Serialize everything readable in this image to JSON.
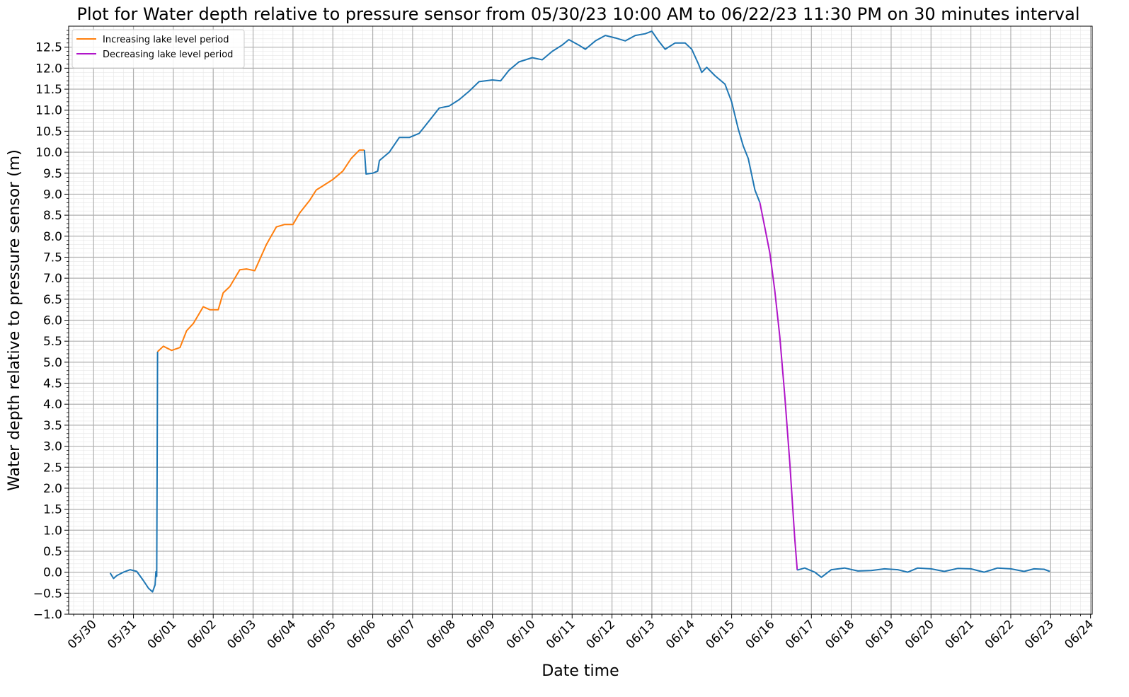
{
  "chart_data": {
    "type": "line",
    "title": "Plot for Water depth relative to pressure sensor from 05/30/23 10:00 AM to 06/22/23 11:30 PM on 30 minutes interval",
    "xlabel": "Date time",
    "ylabel": "Water depth relative to pressure sensor (m)",
    "xlim": [
      "05/29/23 09:00",
      "06/24/23 01:00"
    ],
    "ylim": [
      -1.0,
      13.0
    ],
    "x_ticks": [
      "05/30",
      "05/31",
      "06/01",
      "06/02",
      "06/03",
      "06/04",
      "06/05",
      "06/06",
      "06/07",
      "06/08",
      "06/09",
      "06/10",
      "06/11",
      "06/12",
      "06/13",
      "06/14",
      "06/15",
      "06/16",
      "06/17",
      "06/18",
      "06/19",
      "06/20",
      "06/21",
      "06/22",
      "06/23",
      "06/24"
    ],
    "y_ticks": [
      "−1.0",
      "−0.5",
      "0.0",
      "0.5",
      "1.0",
      "1.5",
      "2.0",
      "2.5",
      "3.0",
      "3.5",
      "4.0",
      "4.5",
      "5.0",
      "5.5",
      "6.0",
      "6.5",
      "7.0",
      "7.5",
      "8.0",
      "8.5",
      "9.0",
      "9.5",
      "10.0",
      "10.5",
      "11.0",
      "11.5",
      "12.0",
      "12.5"
    ],
    "grid": true,
    "minor_grid": true,
    "legend_position": "upper-left",
    "series": [
      {
        "name": "",
        "color": "#1f77b4",
        "points": [
          [
            "05/30/23 10:00",
            -0.02
          ],
          [
            "05/30/23 12:00",
            -0.15
          ],
          [
            "05/30/23 14:00",
            -0.08
          ],
          [
            "05/30/23 18:00",
            0.0
          ],
          [
            "05/30/23 22:00",
            0.06
          ],
          [
            "05/31/23 02:00",
            0.02
          ],
          [
            "05/31/23 06:00",
            -0.2
          ],
          [
            "05/31/23 09:00",
            -0.38
          ],
          [
            "05/31/23 11:30",
            -0.47
          ],
          [
            "05/31/23 13:00",
            -0.3
          ],
          [
            "05/31/23 13:30",
            0.01
          ],
          [
            "05/31/23 14:00",
            -0.1
          ],
          [
            "05/31/23 14:30",
            5.25
          ]
        ]
      },
      {
        "name": "Increasing lake level period",
        "color": "#ff7f0e",
        "points": [
          [
            "05/31/23 14:30",
            5.25
          ],
          [
            "05/31/23 18:00",
            5.38
          ],
          [
            "05/31/23 23:00",
            5.28
          ],
          [
            "06/01/23 04:00",
            5.35
          ],
          [
            "06/01/23 08:00",
            5.75
          ],
          [
            "06/01/23 12:00",
            5.92
          ],
          [
            "06/01/23 18:00",
            6.32
          ],
          [
            "06/01/23 22:00",
            6.25
          ],
          [
            "06/02/23 03:00",
            6.25
          ],
          [
            "06/02/23 06:00",
            6.65
          ],
          [
            "06/02/23 10:00",
            6.8
          ],
          [
            "06/02/23 16:00",
            7.2
          ],
          [
            "06/02/23 20:00",
            7.22
          ],
          [
            "06/03/23 01:00",
            7.18
          ],
          [
            "06/03/23 08:00",
            7.8
          ],
          [
            "06/03/23 14:00",
            8.22
          ],
          [
            "06/03/23 19:00",
            8.28
          ],
          [
            "06/04/23 00:00",
            8.28
          ],
          [
            "06/04/23 04:00",
            8.55
          ],
          [
            "06/04/23 10:00",
            8.85
          ],
          [
            "06/04/23 14:00",
            9.1
          ],
          [
            "06/04/23 18:00",
            9.2
          ],
          [
            "06/05/23 00:00",
            9.35
          ],
          [
            "06/05/23 06:00",
            9.55
          ],
          [
            "06/05/23 11:00",
            9.85
          ],
          [
            "06/05/23 16:00",
            10.05
          ],
          [
            "06/05/23 19:00",
            10.05
          ]
        ]
      },
      {
        "name": "",
        "color": "#1f77b4",
        "points": [
          [
            "06/05/23 19:00",
            10.05
          ],
          [
            "06/05/23 20:00",
            9.48
          ],
          [
            "06/06/23 00:00",
            9.5
          ],
          [
            "06/06/23 03:00",
            9.55
          ],
          [
            "06/06/23 04:00",
            9.8
          ],
          [
            "06/06/23 10:00",
            10.0
          ],
          [
            "06/06/23 16:00",
            10.35
          ],
          [
            "06/06/23 22:00",
            10.35
          ],
          [
            "06/07/23 04:00",
            10.45
          ],
          [
            "06/07/23 10:00",
            10.75
          ],
          [
            "06/07/23 16:00",
            11.05
          ],
          [
            "06/07/23 22:00",
            11.1
          ],
          [
            "06/08/23 04:00",
            11.25
          ],
          [
            "06/08/23 10:00",
            11.45
          ],
          [
            "06/08/23 16:00",
            11.68
          ],
          [
            "06/09/23 00:00",
            11.72
          ],
          [
            "06/09/23 05:00",
            11.7
          ],
          [
            "06/09/23 10:00",
            11.95
          ],
          [
            "06/09/23 16:00",
            12.15
          ],
          [
            "06/10/23 00:00",
            12.25
          ],
          [
            "06/10/23 06:00",
            12.2
          ],
          [
            "06/10/23 12:00",
            12.4
          ],
          [
            "06/10/23 18:00",
            12.55
          ],
          [
            "06/10/23 22:00",
            12.68
          ],
          [
            "06/11/23 04:00",
            12.55
          ],
          [
            "06/11/23 08:00",
            12.45
          ],
          [
            "06/11/23 14:00",
            12.65
          ],
          [
            "06/11/23 20:00",
            12.78
          ],
          [
            "06/12/23 02:00",
            12.72
          ],
          [
            "06/12/23 08:00",
            12.65
          ],
          [
            "06/12/23 14:00",
            12.78
          ],
          [
            "06/12/23 20:00",
            12.82
          ],
          [
            "06/13/23 00:00",
            12.88
          ],
          [
            "06/13/23 04:00",
            12.65
          ],
          [
            "06/13/23 08:00",
            12.45
          ],
          [
            "06/13/23 14:00",
            12.6
          ],
          [
            "06/13/23 20:00",
            12.6
          ],
          [
            "06/14/23 00:00",
            12.45
          ],
          [
            "06/14/23 04:00",
            12.1
          ],
          [
            "06/14/23 06:00",
            11.9
          ],
          [
            "06/14/23 09:00",
            12.02
          ],
          [
            "06/14/23 14:00",
            11.82
          ],
          [
            "06/14/23 20:00",
            11.62
          ],
          [
            "06/15/23 00:00",
            11.2
          ],
          [
            "06/15/23 04:00",
            10.55
          ],
          [
            "06/15/23 07:00",
            10.15
          ],
          [
            "06/15/23 10:00",
            9.85
          ],
          [
            "06/15/23 14:00",
            9.1
          ],
          [
            "06/15/23 17:00",
            8.8
          ]
        ]
      },
      {
        "name": "Decreasing lake level period",
        "color": "#b015c9",
        "points": [
          [
            "06/15/23 17:00",
            8.8
          ],
          [
            "06/15/23 20:00",
            8.2
          ],
          [
            "06/15/23 23:00",
            7.6
          ],
          [
            "06/16/23 02:00",
            6.7
          ],
          [
            "06/16/23 05:00",
            5.6
          ],
          [
            "06/16/23 08:00",
            4.2
          ],
          [
            "06/16/23 11:00",
            2.6
          ],
          [
            "06/16/23 14:00",
            0.8
          ],
          [
            "06/16/23 15:30",
            0.05
          ]
        ]
      },
      {
        "name": "",
        "color": "#1f77b4",
        "points": [
          [
            "06/16/23 15:30",
            0.05
          ],
          [
            "06/16/23 20:00",
            0.1
          ],
          [
            "06/17/23 02:00",
            0.0
          ],
          [
            "06/17/23 06:00",
            -0.12
          ],
          [
            "06/17/23 12:00",
            0.06
          ],
          [
            "06/17/23 20:00",
            0.1
          ],
          [
            "06/18/23 04:00",
            0.03
          ],
          [
            "06/18/23 12:00",
            0.04
          ],
          [
            "06/18/23 20:00",
            0.08
          ],
          [
            "06/19/23 04:00",
            0.06
          ],
          [
            "06/19/23 10:00",
            0.0
          ],
          [
            "06/19/23 16:00",
            0.1
          ],
          [
            "06/20/23 00:00",
            0.08
          ],
          [
            "06/20/23 08:00",
            0.02
          ],
          [
            "06/20/23 16:00",
            0.09
          ],
          [
            "06/21/23 00:00",
            0.08
          ],
          [
            "06/21/23 08:00",
            0.0
          ],
          [
            "06/21/23 16:00",
            0.1
          ],
          [
            "06/22/23 00:00",
            0.08
          ],
          [
            "06/22/23 08:00",
            0.02
          ],
          [
            "06/22/23 14:00",
            0.08
          ],
          [
            "06/22/23 20:00",
            0.07
          ],
          [
            "06/22/23 23:30",
            0.02
          ]
        ]
      }
    ]
  }
}
